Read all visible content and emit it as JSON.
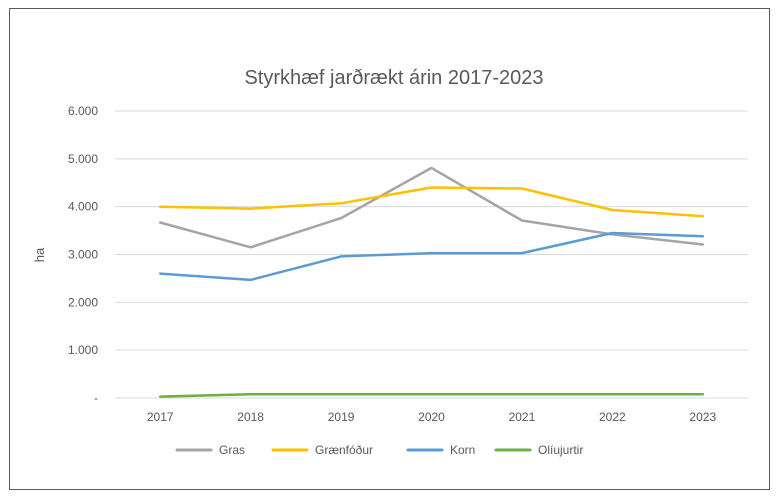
{
  "chart_data": {
    "type": "line",
    "title": "Styrkhæf jarðrækt árin 2017-2023",
    "xlabel": "",
    "ylabel": "ha",
    "x": [
      "2017",
      "2018",
      "2019",
      "2020",
      "2021",
      "2022",
      "2023"
    ],
    "y_ticks": [
      {
        "value": 0,
        "label": "-"
      },
      {
        "value": 1000,
        "label": "1.000"
      },
      {
        "value": 2000,
        "label": "2.000"
      },
      {
        "value": 3000,
        "label": "3.000"
      },
      {
        "value": 4000,
        "label": "4.000"
      },
      {
        "value": 5000,
        "label": "5.000"
      },
      {
        "value": 6000,
        "label": "6.000"
      }
    ],
    "ylim": [
      0,
      6000
    ],
    "grid": true,
    "legend_position": "bottom",
    "series": [
      {
        "name": "Gras",
        "color": "#a5a5a5",
        "values": [
          3670,
          3150,
          3760,
          4810,
          3710,
          3420,
          3210
        ]
      },
      {
        "name": "Grænfóður",
        "color": "#ffc000",
        "values": [
          4000,
          3960,
          4070,
          4400,
          4380,
          3930,
          3800
        ]
      },
      {
        "name": "Korn",
        "color": "#5b9bd5",
        "values": [
          2600,
          2470,
          2960,
          3030,
          3030,
          3450,
          3380
        ]
      },
      {
        "name": "Olíujurtir",
        "color": "#70ad47",
        "values": [
          30,
          80,
          80,
          80,
          80,
          80,
          80
        ]
      }
    ]
  }
}
